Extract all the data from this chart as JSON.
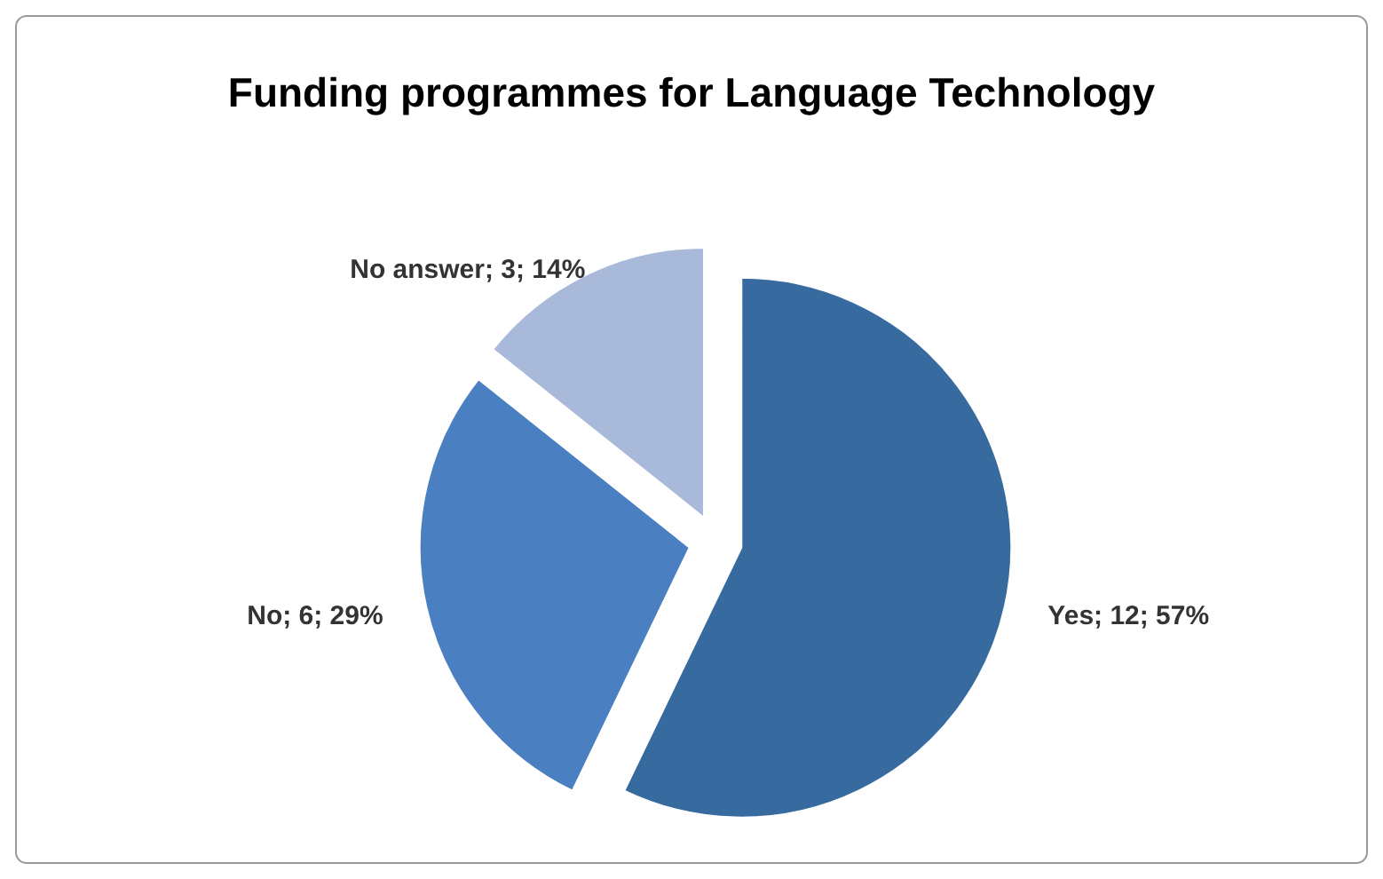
{
  "chart_data": {
    "type": "pie",
    "title": "Funding programmes for Language Technology",
    "categories": [
      "Yes",
      "No",
      "No answer"
    ],
    "values": [
      12,
      6,
      3
    ],
    "colors": [
      "#376a9e",
      "#4a7fc1",
      "#a9b9da"
    ],
    "value_labels": [
      "; 12; 57%",
      "; 6; 29%",
      "; 3; 14%"
    ],
    "legend": false
  }
}
